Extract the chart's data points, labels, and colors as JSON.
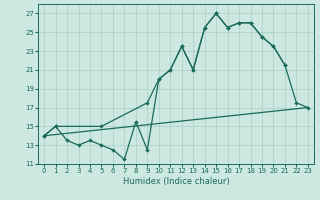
{
  "xlabel": "Humidex (Indice chaleur)",
  "bg_color": "#cde8e0",
  "grid_color": "#a8cfc5",
  "line_color": "#1a6b5a",
  "xlim": [
    -0.5,
    23.5
  ],
  "ylim": [
    11,
    28
  ],
  "yticks": [
    11,
    13,
    15,
    17,
    19,
    21,
    23,
    25,
    27
  ],
  "xticks": [
    0,
    1,
    2,
    3,
    4,
    5,
    6,
    7,
    8,
    9,
    10,
    11,
    12,
    13,
    14,
    15,
    16,
    17,
    18,
    19,
    20,
    21,
    22,
    23
  ],
  "line1_x": [
    0,
    1,
    2,
    3,
    4,
    5,
    6,
    7,
    8,
    9,
    10,
    11,
    12,
    13,
    14,
    15,
    16,
    17,
    18,
    19,
    20,
    21
  ],
  "line1_y": [
    14.0,
    15.0,
    13.5,
    13.0,
    13.5,
    13.0,
    12.5,
    11.5,
    15.5,
    12.5,
    20.0,
    21.0,
    23.5,
    21.0,
    25.5,
    27.0,
    25.5,
    26.0,
    26.0,
    24.5,
    23.5,
    21.5
  ],
  "line2_x": [
    0,
    1,
    5,
    9,
    10,
    11,
    12,
    13,
    14,
    15,
    16,
    17,
    18,
    19,
    20,
    21,
    22,
    23
  ],
  "line2_y": [
    14.0,
    15.0,
    15.0,
    17.5,
    20.0,
    21.0,
    23.5,
    21.0,
    25.5,
    27.0,
    25.5,
    26.0,
    26.0,
    24.5,
    23.5,
    21.5,
    17.5,
    17.0
  ],
  "line3_x": [
    0,
    23
  ],
  "line3_y": [
    14.0,
    17.0
  ]
}
